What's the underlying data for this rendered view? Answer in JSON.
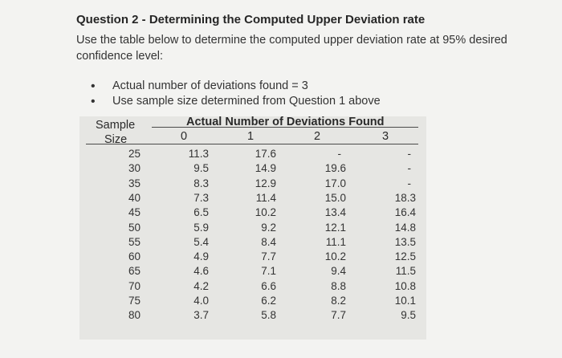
{
  "question": {
    "title": "Question 2 - Determining the Computed Upper Deviation rate",
    "intro": "Use the table below to determine the computed upper deviation rate at 95% desired confidence level:",
    "bullets": [
      "Actual number of deviations found = 3",
      "Use sample size determined from Question 1 above"
    ]
  },
  "table": {
    "row_header_line1": "Sample",
    "row_header_line2": "Size",
    "group_header": "Actual Number of Deviations Found",
    "columns": [
      "0",
      "1",
      "2",
      "3"
    ],
    "rows": [
      {
        "size": "25",
        "values": [
          "11.3",
          "17.6",
          "-",
          "-"
        ]
      },
      {
        "size": "30",
        "values": [
          "9.5",
          "14.9",
          "19.6",
          "-"
        ]
      },
      {
        "size": "35",
        "values": [
          "8.3",
          "12.9",
          "17.0",
          "-"
        ]
      },
      {
        "size": "40",
        "values": [
          "7.3",
          "11.4",
          "15.0",
          "18.3"
        ]
      },
      {
        "size": "45",
        "values": [
          "6.5",
          "10.2",
          "13.4",
          "16.4"
        ]
      },
      {
        "size": "50",
        "values": [
          "5.9",
          "9.2",
          "12.1",
          "14.8"
        ]
      },
      {
        "size": "55",
        "values": [
          "5.4",
          "8.4",
          "11.1",
          "13.5"
        ]
      },
      {
        "size": "60",
        "values": [
          "4.9",
          "7.7",
          "10.2",
          "12.5"
        ]
      },
      {
        "size": "65",
        "values": [
          "4.6",
          "7.1",
          "9.4",
          "11.5"
        ]
      },
      {
        "size": "70",
        "values": [
          "4.2",
          "6.6",
          "8.8",
          "10.8"
        ]
      },
      {
        "size": "75",
        "values": [
          "4.0",
          "6.2",
          "8.2",
          "10.1"
        ]
      },
      {
        "size": "80",
        "values": [
          "3.7",
          "5.8",
          "7.7",
          "9.5"
        ]
      }
    ]
  }
}
